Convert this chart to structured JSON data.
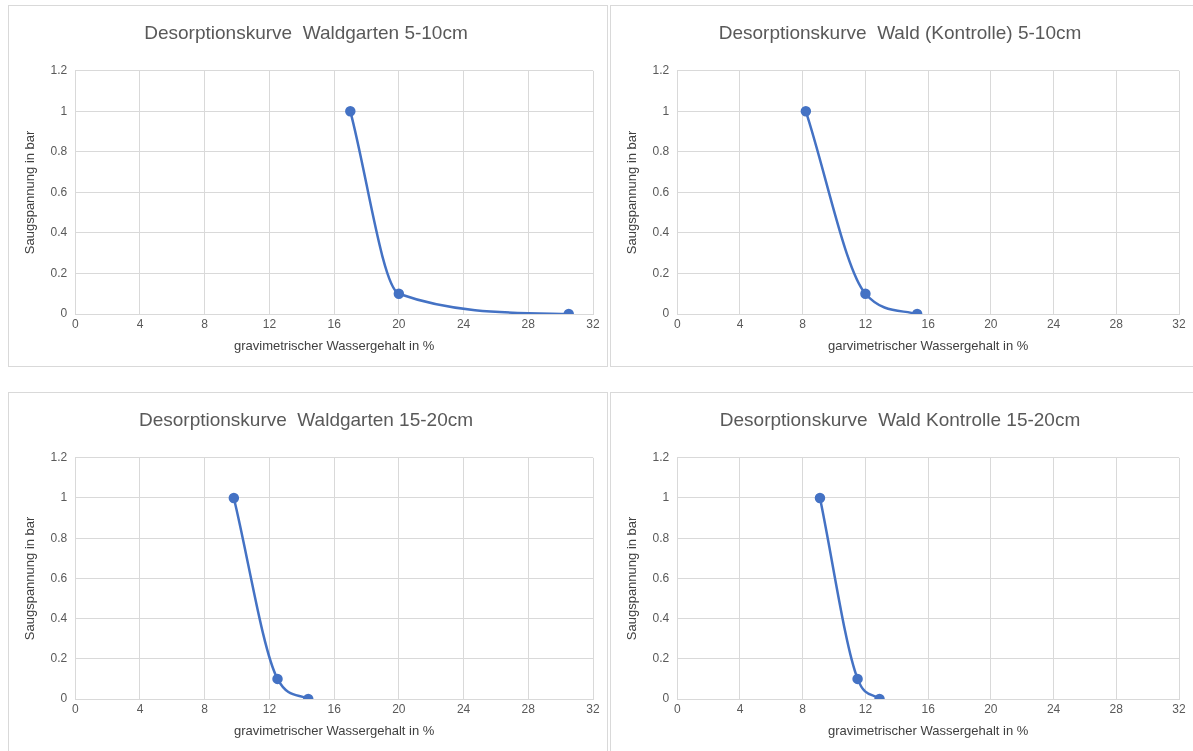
{
  "chart_data": [
    {
      "type": "line",
      "title": "Desorptionskurve  Waldgarten 5-10cm",
      "xlabel": "gravimetrischer Wassergehalt in %",
      "ylabel": "Saugspannung in bar",
      "x": [
        17,
        20,
        30.5
      ],
      "series": [
        {
          "color": "#4472c4",
          "values": [
            1,
            0.1,
            0
          ]
        }
      ],
      "xlim": [
        0,
        32
      ],
      "xticks": [
        0,
        4,
        8,
        12,
        16,
        20,
        24,
        28,
        32
      ],
      "ylim": [
        0,
        1.2
      ],
      "yticks": [
        0,
        0.2,
        0.4,
        0.6,
        0.8,
        1,
        1.2
      ],
      "grid": true,
      "marker": "circle"
    },
    {
      "type": "line",
      "title": "Desorptionskurve  Wald (Kontrolle) 5-10cm",
      "xlabel": "garvimetrischer Wassergehalt in %",
      "ylabel": "Saugspannung in bar",
      "x": [
        8.2,
        12,
        15.3
      ],
      "series": [
        {
          "color": "#4472c4",
          "values": [
            1,
            0.1,
            0
          ]
        }
      ],
      "xlim": [
        0,
        32
      ],
      "xticks": [
        0,
        4,
        8,
        12,
        16,
        20,
        24,
        28,
        32
      ],
      "ylim": [
        0,
        1.2
      ],
      "yticks": [
        0,
        0.2,
        0.4,
        0.6,
        0.8,
        1,
        1.2
      ],
      "grid": true,
      "marker": "circle"
    },
    {
      "type": "line",
      "title": "Desorptionskurve  Waldgarten 15-20cm",
      "xlabel": "gravimetrischer Wassergehalt in %",
      "ylabel": "Saugspannung in bar",
      "x": [
        9.8,
        12.5,
        14.4
      ],
      "series": [
        {
          "color": "#4472c4",
          "values": [
            1,
            0.1,
            0
          ]
        }
      ],
      "xlim": [
        0,
        32
      ],
      "xticks": [
        0,
        4,
        8,
        12,
        16,
        20,
        24,
        28,
        32
      ],
      "ylim": [
        0,
        1.2
      ],
      "yticks": [
        0,
        0.2,
        0.4,
        0.6,
        0.8,
        1,
        1.2
      ],
      "grid": true,
      "marker": "circle"
    },
    {
      "type": "line",
      "title": "Desorptionskurve  Wald Kontrolle 15-20cm",
      "xlabel": "gravimetrischer Wassergehalt in %",
      "ylabel": "Saugspannung in bar",
      "x": [
        9.1,
        11.5,
        12.9
      ],
      "series": [
        {
          "color": "#4472c4",
          "values": [
            1,
            0.1,
            0
          ]
        }
      ],
      "xlim": [
        0,
        32
      ],
      "xticks": [
        0,
        4,
        8,
        12,
        16,
        20,
        24,
        28,
        32
      ],
      "ylim": [
        0,
        1.2
      ],
      "yticks": [
        0,
        0.2,
        0.4,
        0.6,
        0.8,
        1,
        1.2
      ],
      "grid": true,
      "marker": "circle"
    }
  ]
}
